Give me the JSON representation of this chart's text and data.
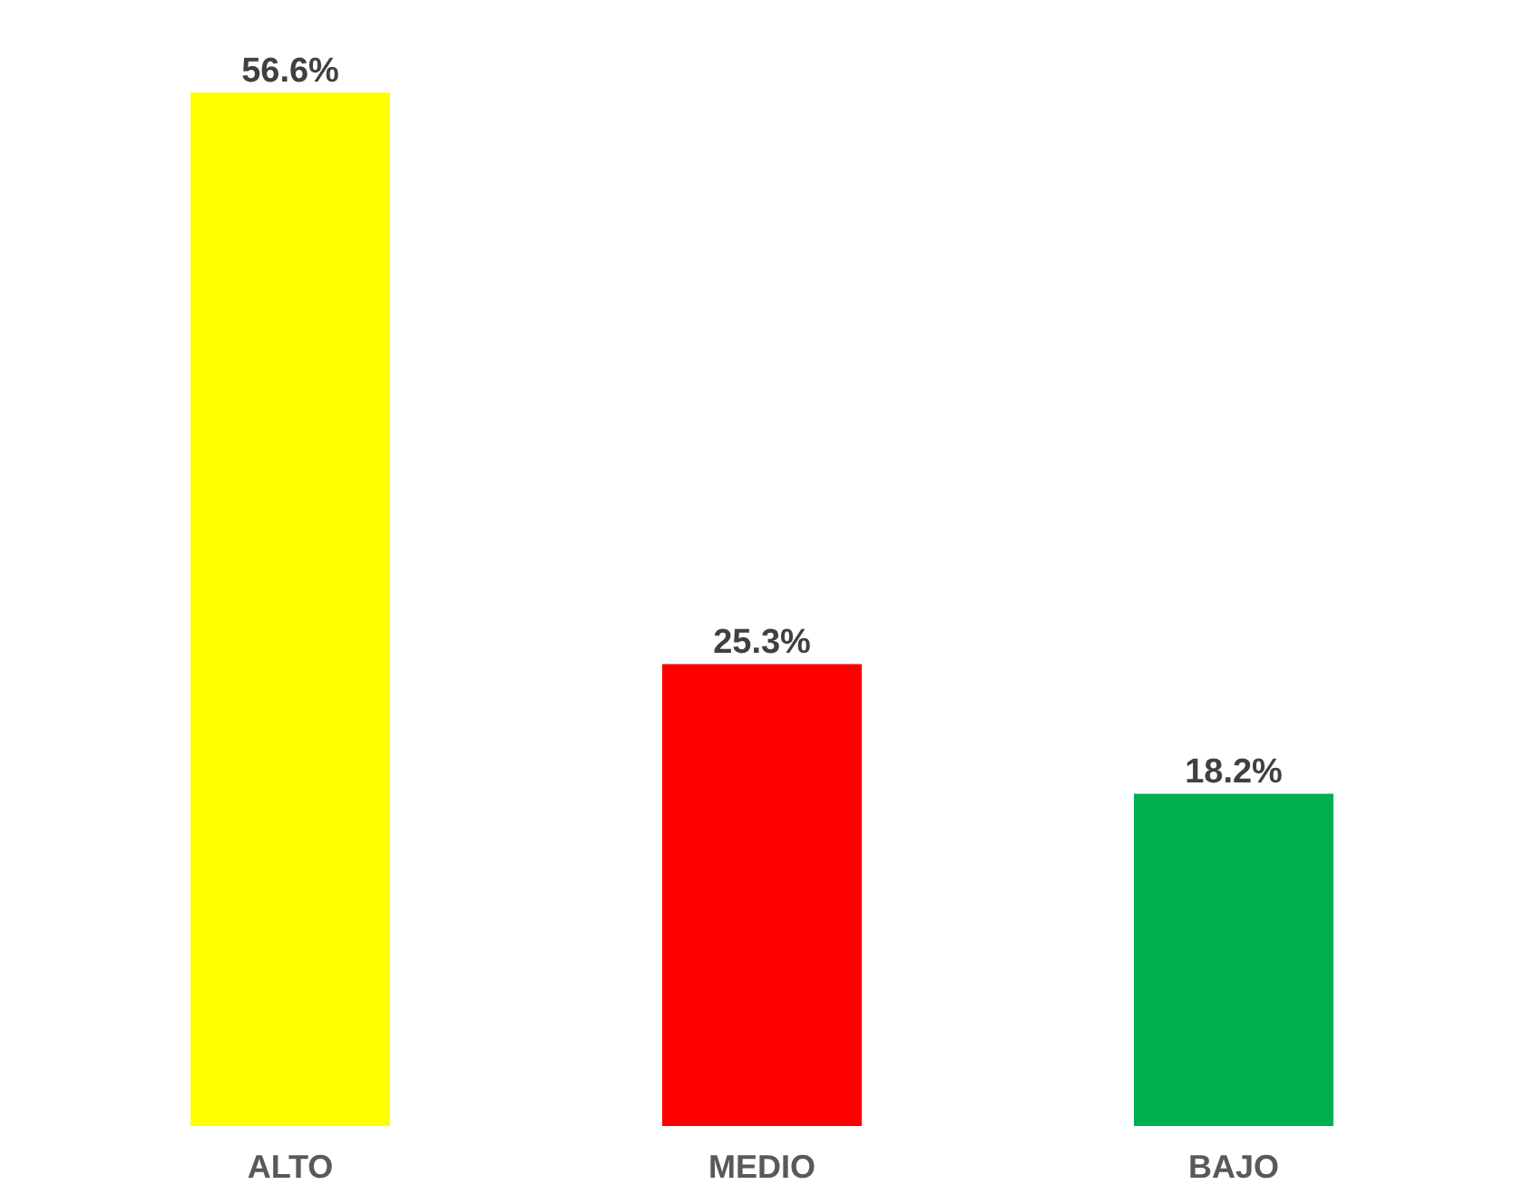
{
  "chart_data": {
    "type": "bar",
    "categories": [
      "ALTO",
      "MEDIO",
      "BAJO"
    ],
    "values": [
      56.6,
      25.3,
      18.2
    ],
    "colors": [
      "#ffff00",
      "#ff0000",
      "#00b050"
    ],
    "value_labels": [
      "56.6%",
      "25.3%",
      "18.2%"
    ]
  }
}
